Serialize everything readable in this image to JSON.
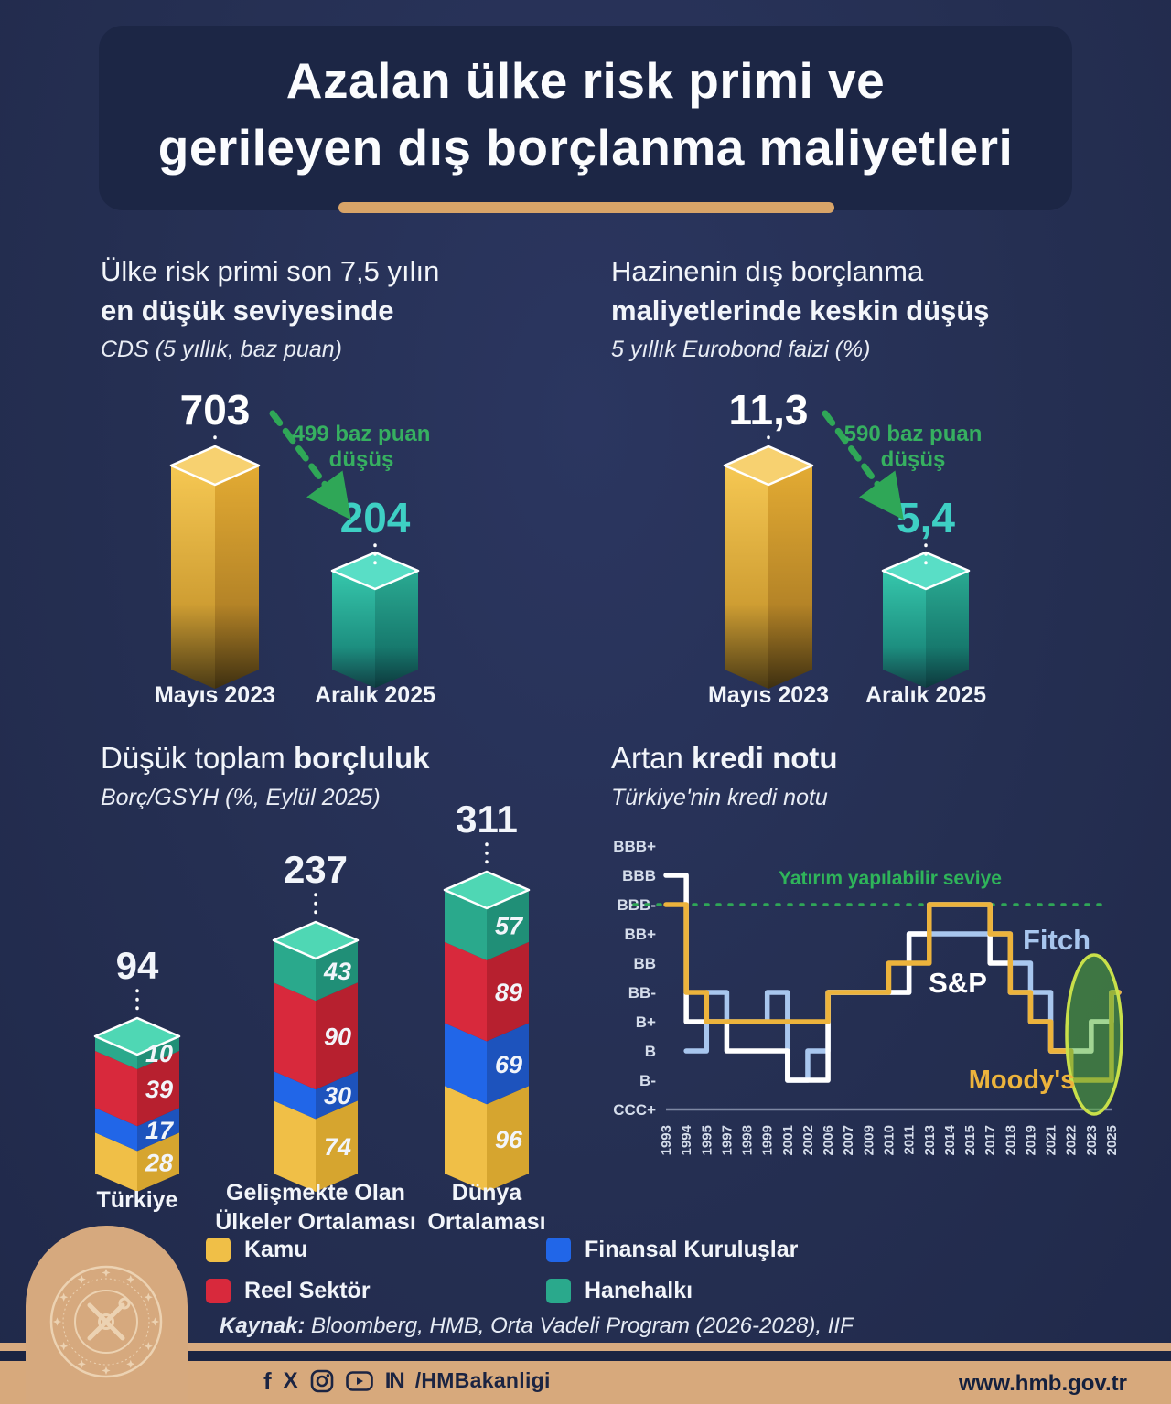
{
  "page_title_line1": "Azalan ülke risk primi ve",
  "page_title_line2": "gerileyen dış borçlanma maliyetleri",
  "accent_colors": {
    "background_navy": "#252f52",
    "panel_navy": "#1c2645",
    "tan": "#d7a97c",
    "green": "#2fa757",
    "teal_number": "#3ecfc4",
    "gold_bar": "#e9b23d",
    "teal_bar": "#2fbfa7"
  },
  "source": {
    "label": "Kaynak:",
    "text": " Bloomberg, HMB, Orta Vadeli Program (2026-2028), IIF"
  },
  "footer": {
    "handle": "/HMBakanligi",
    "website": "www.hmb.gov.tr",
    "icons": [
      "facebook-icon",
      "x-icon",
      "instagram-icon",
      "youtube-icon",
      "nsosyal-icon"
    ]
  },
  "chart_data": [
    {
      "id": "cds",
      "type": "bar",
      "title_line1": "Ülke risk primi son 7,5 yılın",
      "title_line2": "en düşük seviyesinde",
      "subtitle": "CDS (5 yıllık, baz puan)",
      "categories": [
        "Mayıs 2023",
        "Aralık 2025"
      ],
      "values": [
        703,
        204
      ],
      "value_labels": [
        "703",
        "204"
      ],
      "value_colors": [
        "#ffffff",
        "#3ecfc4"
      ],
      "bar_colors": [
        "#e9b23d",
        "#2fbfa7"
      ],
      "annotation_line1": "499 baz puan",
      "annotation_line2": "düşüş"
    },
    {
      "id": "eurobond",
      "type": "bar",
      "title_line1": "Hazinenin dış borçlanma",
      "title_line2": "maliyetlerinde keskin düşüş",
      "subtitle": "5 yıllık Eurobond faizi (%)",
      "categories": [
        "Mayıs 2023",
        "Aralık 2025"
      ],
      "values": [
        11.3,
        5.4
      ],
      "value_labels": [
        "11,3",
        "5,4"
      ],
      "value_colors": [
        "#ffffff",
        "#3ecfc4"
      ],
      "bar_colors": [
        "#e9b23d",
        "#2fbfa7"
      ],
      "annotation_line1": "590 baz puan",
      "annotation_line2": "düşüş"
    },
    {
      "id": "debt",
      "type": "bar",
      "stacked": true,
      "title_normal": "Düşük toplam ",
      "title_bold": "borçluluk",
      "subtitle": "Borç/GSYH (%, Eylül 2025)",
      "categories": [
        "Türkiye",
        "Gelişmekte Olan Ülkeler Ortalaması",
        "Dünya Ortalaması"
      ],
      "category_lines": [
        [
          "Türkiye"
        ],
        [
          "Gelişmekte Olan",
          "Ülkeler Ortalaması"
        ],
        [
          "Dünya",
          "Ortalaması"
        ]
      ],
      "totals": [
        94,
        237,
        311
      ],
      "series": [
        {
          "name": "Kamu",
          "color": "#f0bf47",
          "color_dark": "#d6a52f",
          "values": [
            28,
            74,
            96
          ]
        },
        {
          "name": "Finansal Kuruluşlar",
          "color": "#2166e8",
          "color_dark": "#1d53bd",
          "values": [
            17,
            30,
            69
          ]
        },
        {
          "name": "Reel Sektör",
          "color": "#d8293c",
          "color_dark": "#b7202f",
          "values": [
            39,
            90,
            89
          ]
        },
        {
          "name": "Hanehalkı",
          "color": "#2aa98c",
          "color_dark": "#208f77",
          "values": [
            10,
            43,
            57
          ]
        }
      ]
    },
    {
      "id": "rating",
      "type": "line",
      "title_normal": "Artan ",
      "title_bold": "kredi notu",
      "subtitle": "Türkiye'nin kredi notu",
      "y_labels": [
        "BBB+",
        "BBB",
        "BBB-",
        "BB+",
        "BB",
        "BB-",
        "B+",
        "B",
        "B-",
        "CCC+"
      ],
      "level_scale_bottom_to_top": [
        "CCC+",
        "B-",
        "B",
        "B+",
        "BB-",
        "BB",
        "BB+",
        "BBB-",
        "BBB",
        "BBB+"
      ],
      "x": [
        "1993",
        "1994",
        "1995",
        "1997",
        "1998",
        "1999",
        "2001",
        "2002",
        "2006",
        "2007",
        "2009",
        "2010",
        "2011",
        "2013",
        "2014",
        "2015",
        "2017",
        "2018",
        "2019",
        "2021",
        "2022",
        "2023",
        "2025"
      ],
      "threshold": {
        "label": "Yatırım yapılabilir seviye",
        "level": "BBB-",
        "color": "#2fa757"
      },
      "series": [
        {
          "name": "Fitch",
          "color": "#a8c6ee",
          "values": [
            null,
            2,
            4,
            3,
            3,
            4,
            1,
            2,
            4,
            4,
            4,
            4,
            6,
            6,
            6,
            6,
            6,
            5,
            4,
            2,
            2,
            3,
            4
          ]
        },
        {
          "name": "S&P",
          "color": "#ffffff",
          "values": [
            8,
            3,
            3,
            2,
            2,
            2,
            1,
            1,
            4,
            4,
            4,
            4,
            6,
            7,
            7,
            7,
            5,
            4,
            3,
            2,
            2,
            3,
            4
          ]
        },
        {
          "name": "Moody's",
          "color": "#ecb33c",
          "values": [
            7,
            4,
            3,
            3,
            3,
            3,
            3,
            3,
            4,
            4,
            4,
            5,
            5,
            7,
            7,
            7,
            6,
            4,
            3,
            2,
            1,
            1,
            4
          ]
        }
      ],
      "highlight_years": [
        "2023",
        "2025"
      ]
    }
  ]
}
